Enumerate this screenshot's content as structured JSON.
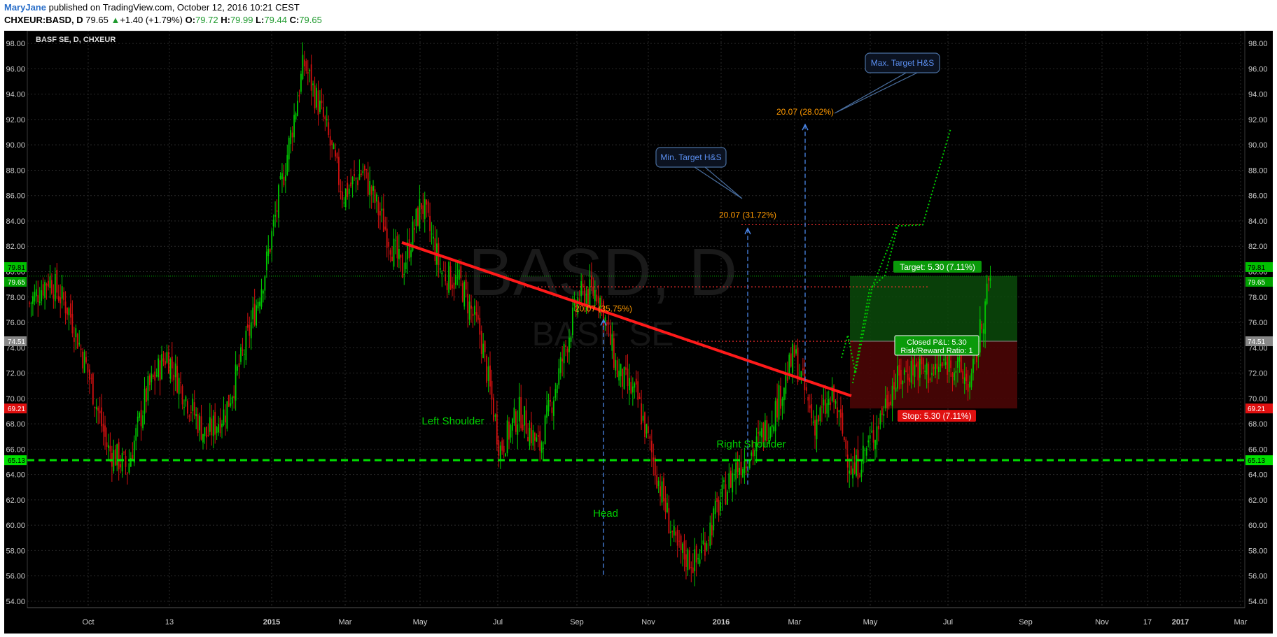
{
  "header": {
    "author": "MaryJane",
    "published": "published on TradingView.com, October 12, 2016 10:21 CEST",
    "symbol": "CHXEUR:BASD, D",
    "last": "79.65",
    "change": "+1.40 (+1.79%)",
    "o_label": "O:",
    "o_value": "79.72",
    "h_label": "H:",
    "h_value": "79.99",
    "l_label": "L:",
    "l_value": "79.44",
    "c_label": "C:",
    "c_value": "79.65"
  },
  "chart_data": {
    "type": "candlestick",
    "title": "BASF SE, D, CHXEUR",
    "watermark_symbol": "BASD, D",
    "watermark_name": "BASF SE",
    "ylim": [
      53.5,
      99
    ],
    "y_ticks": [
      "54.00",
      "56.00",
      "58.00",
      "60.00",
      "62.00",
      "64.00",
      "66.00",
      "68.00",
      "70.00",
      "72.00",
      "74.00",
      "76.00",
      "78.00",
      "80.00",
      "82.00",
      "84.00",
      "86.00",
      "88.00",
      "90.00",
      "92.00",
      "94.00",
      "96.00",
      "98.00"
    ],
    "x_ticks": [
      "Oct",
      "13",
      "2015",
      "Mar",
      "May",
      "Jul",
      "Sep",
      "Nov",
      "2016",
      "Mar",
      "May",
      "Jul",
      "Sep",
      "Nov",
      "2017",
      "Mar",
      "17"
    ],
    "grid": true,
    "price_path": [
      {
        "date": "2014-08",
        "close": 77.5
      },
      {
        "date": "2014-08",
        "close": 79.5
      },
      {
        "date": "2014-09",
        "close": 77.0
      },
      {
        "date": "2014-09",
        "close": 72.0
      },
      {
        "date": "2014-10",
        "close": 66.0
      },
      {
        "date": "2014-10",
        "close": 64.5
      },
      {
        "date": "2014-11",
        "close": 70.5
      },
      {
        "date": "2014-11",
        "close": 73.5
      },
      {
        "date": "2014-12",
        "close": 70.0
      },
      {
        "date": "2014-12",
        "close": 67.0
      },
      {
        "date": "2015-01",
        "close": 69.0
      },
      {
        "date": "2015-01",
        "close": 74.0
      },
      {
        "date": "2015-02",
        "close": 80.0
      },
      {
        "date": "2015-03",
        "close": 88.0
      },
      {
        "date": "2015-04",
        "close": 96.5
      },
      {
        "date": "2015-04",
        "close": 92.0
      },
      {
        "date": "2015-05",
        "close": 86.0
      },
      {
        "date": "2015-05",
        "close": 88.0
      },
      {
        "date": "2015-06",
        "close": 84.0
      },
      {
        "date": "2015-06",
        "close": 80.0
      },
      {
        "date": "2015-07",
        "close": 85.5
      },
      {
        "date": "2015-07",
        "close": 80.0
      },
      {
        "date": "2015-08",
        "close": 79.0
      },
      {
        "date": "2015-08",
        "close": 75.0
      },
      {
        "date": "2015-09",
        "close": 66.0
      },
      {
        "date": "2015-09",
        "close": 69.0
      },
      {
        "date": "2015-10",
        "close": 66.0
      },
      {
        "date": "2015-10",
        "close": 72.0
      },
      {
        "date": "2015-11",
        "close": 78.0
      },
      {
        "date": "2015-11",
        "close": 78.5
      },
      {
        "date": "2015-12",
        "close": 72.0
      },
      {
        "date": "2015-12",
        "close": 70.0
      },
      {
        "date": "2016-01",
        "close": 64.0
      },
      {
        "date": "2016-01",
        "close": 58.0
      },
      {
        "date": "2016-02",
        "close": 57.0
      },
      {
        "date": "2016-02",
        "close": 61.0
      },
      {
        "date": "2016-03",
        "close": 64.5
      },
      {
        "date": "2016-04",
        "close": 66.0
      },
      {
        "date": "2016-04",
        "close": 69.0
      },
      {
        "date": "2016-05",
        "close": 73.5
      },
      {
        "date": "2016-05",
        "close": 68.0
      },
      {
        "date": "2016-06",
        "close": 70.0
      },
      {
        "date": "2016-06",
        "close": 64.0
      },
      {
        "date": "2016-07",
        "close": 67.0
      },
      {
        "date": "2016-07",
        "close": 71.0
      },
      {
        "date": "2016-08",
        "close": 72.5
      },
      {
        "date": "2016-08",
        "close": 72.0
      },
      {
        "date": "2016-09",
        "close": 73.0
      },
      {
        "date": "2016-09",
        "close": 71.0
      },
      {
        "date": "2016-10",
        "close": 79.65
      }
    ],
    "annotations": {
      "neckline_support": {
        "price": 65.13,
        "label": "65.13",
        "color": "#00e000"
      },
      "downtrend_line": {
        "from": {
          "date": "2015-08",
          "price": 82.3
        },
        "to": {
          "date": "2016-09",
          "price": 70.2
        },
        "color": "#ff1a1a"
      },
      "last_price": {
        "price": 79.65,
        "label": "79.65"
      },
      "target_price": {
        "price": 79.81,
        "label": "79.81"
      },
      "entry_price": {
        "price": 74.51,
        "label": "74.51"
      },
      "stop_price": {
        "price": 69.21,
        "label": "69.21"
      },
      "pattern_labels": [
        "Left Shoulder",
        "Head",
        "Right Shoulder"
      ],
      "measures": [
        "20.07 (35.75%)",
        "20.07 (31.72%)",
        "20.07 (28.02%)"
      ],
      "callouts": [
        "Min. Target H&S",
        "Max. Target H&S"
      ],
      "target_box": "Target: 5.30 (7.11%)",
      "pl_box": [
        "Closed P&L: 5.30",
        "Risk/Reward Ratio: 1"
      ],
      "stop_box": "Stop: 5.30 (7.11%)"
    },
    "colors": {
      "up": "#00c800",
      "down": "#d01010",
      "background": "#000000",
      "grid": "#2a2a2a",
      "measure": "#4a86e8",
      "label_orange": "#ff9900"
    }
  }
}
